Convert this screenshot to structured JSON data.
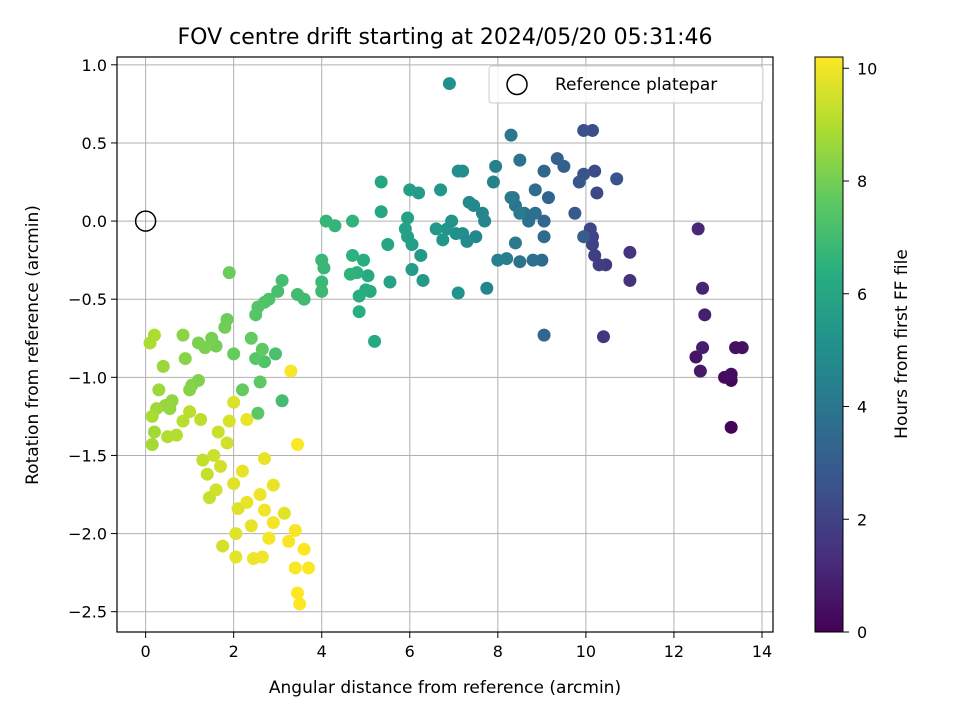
{
  "chart_data": {
    "type": "scatter",
    "title": "FOV centre drift starting at 2024/05/20 05:31:46",
    "xlabel": "Angular distance from reference (arcmin)",
    "ylabel": "Rotation from reference (arcmin)",
    "xlim": [
      -0.65,
      14.25
    ],
    "ylim": [
      -2.63,
      1.05
    ],
    "x_ticks": [
      0,
      2,
      4,
      6,
      8,
      10,
      12,
      14
    ],
    "y_ticks": [
      -2.5,
      -2.0,
      -1.5,
      -1.0,
      -0.5,
      0.0,
      0.5,
      1.0
    ],
    "x_tick_labels": [
      "0",
      "2",
      "4",
      "6",
      "8",
      "10",
      "12",
      "14"
    ],
    "y_tick_labels": [
      "−2.5",
      "−2.0",
      "−1.5",
      "−1.0",
      "−0.5",
      "0.0",
      "0.5",
      "1.0"
    ],
    "grid": true,
    "legend": {
      "placement": "top-right",
      "label": "Reference platepar"
    },
    "reference_point": {
      "x": 0,
      "y": 0
    },
    "colorbar": {
      "label": "Hours from first FF file",
      "colormap": "viridis",
      "range": [
        0,
        10.2
      ],
      "ticks": [
        0,
        2,
        4,
        6,
        8,
        10
      ],
      "tick_labels": [
        "0",
        "2",
        "4",
        "6",
        "8",
        "10"
      ]
    },
    "points": [
      [
        13.3,
        -1.32,
        0.1
      ],
      [
        13.3,
        -1.02,
        0.2
      ],
      [
        13.15,
        -1.0,
        0.3
      ],
      [
        13.3,
        -0.98,
        0.35
      ],
      [
        13.4,
        -0.81,
        0.4
      ],
      [
        13.55,
        -0.81,
        0.45
      ],
      [
        12.5,
        -0.87,
        0.6
      ],
      [
        12.6,
        -0.96,
        0.7
      ],
      [
        12.65,
        -0.81,
        0.8
      ],
      [
        12.7,
        -0.6,
        0.9
      ],
      [
        12.65,
        -0.43,
        1.0
      ],
      [
        12.55,
        -0.05,
        1.1
      ],
      [
        11.0,
        -0.38,
        1.4
      ],
      [
        11.0,
        -0.2,
        1.5
      ],
      [
        10.4,
        -0.74,
        1.6
      ],
      [
        10.45,
        -0.28,
        1.7
      ],
      [
        10.3,
        -0.28,
        1.8
      ],
      [
        10.2,
        -0.22,
        1.9
      ],
      [
        10.15,
        -0.15,
        2.0
      ],
      [
        10.15,
        -0.1,
        2.05
      ],
      [
        10.1,
        -0.05,
        2.1
      ],
      [
        10.25,
        0.18,
        2.2
      ],
      [
        10.2,
        0.32,
        2.3
      ],
      [
        10.15,
        0.58,
        2.4
      ],
      [
        9.95,
        0.58,
        2.5
      ],
      [
        10.7,
        0.27,
        2.6
      ],
      [
        9.95,
        0.3,
        2.7
      ],
      [
        9.85,
        0.25,
        2.8
      ],
      [
        9.75,
        0.05,
        2.9
      ],
      [
        9.95,
        -0.1,
        3.0
      ],
      [
        9.5,
        0.35,
        3.1
      ],
      [
        9.35,
        0.4,
        3.2
      ],
      [
        9.15,
        0.15,
        3.3
      ],
      [
        9.05,
        0.32,
        3.35
      ],
      [
        9.05,
        -0.73,
        3.4
      ],
      [
        9.05,
        0.0,
        3.45
      ],
      [
        9.0,
        -0.25,
        3.5
      ],
      [
        9.05,
        -0.1,
        3.55
      ],
      [
        8.85,
        0.2,
        3.6
      ],
      [
        8.85,
        0.05,
        3.65
      ],
      [
        8.8,
        -0.25,
        3.7
      ],
      [
        8.7,
        0.0,
        3.75
      ],
      [
        8.6,
        0.05,
        3.8
      ],
      [
        8.5,
        0.39,
        3.85
      ],
      [
        8.5,
        -0.26,
        3.9
      ],
      [
        8.4,
        0.1,
        3.95
      ],
      [
        8.35,
        0.15,
        4.0
      ],
      [
        8.3,
        0.55,
        4.05
      ],
      [
        8.3,
        0.15,
        4.1
      ],
      [
        8.4,
        -0.14,
        4.15
      ],
      [
        8.5,
        0.05,
        4.2
      ],
      [
        8.2,
        -0.24,
        4.3
      ],
      [
        8.0,
        -0.25,
        4.4
      ],
      [
        7.95,
        0.35,
        4.45
      ],
      [
        7.9,
        0.25,
        4.5
      ],
      [
        7.7,
        0.0,
        4.55
      ],
      [
        7.75,
        -0.43,
        4.6
      ],
      [
        7.65,
        0.05,
        4.65
      ],
      [
        7.5,
        -0.1,
        4.7
      ],
      [
        7.45,
        0.1,
        4.75
      ],
      [
        7.35,
        0.12,
        4.8
      ],
      [
        7.3,
        -0.13,
        4.85
      ],
      [
        7.2,
        -0.08,
        4.9
      ],
      [
        7.2,
        0.32,
        4.95
      ],
      [
        7.1,
        0.32,
        5.0
      ],
      [
        7.05,
        -0.08,
        5.05
      ],
      [
        6.9,
        0.88,
        5.1
      ],
      [
        7.1,
        -0.46,
        5.15
      ],
      [
        6.95,
        0.0,
        5.2
      ],
      [
        6.85,
        -0.05,
        5.25
      ],
      [
        6.75,
        -0.12,
        5.3
      ],
      [
        6.7,
        0.2,
        5.35
      ],
      [
        6.6,
        -0.05,
        5.4
      ],
      [
        6.3,
        -0.38,
        5.45
      ],
      [
        6.25,
        -0.22,
        5.5
      ],
      [
        6.2,
        0.18,
        5.55
      ],
      [
        6.05,
        -0.31,
        5.6
      ],
      [
        6.05,
        -0.15,
        5.65
      ],
      [
        6.0,
        0.2,
        5.7
      ],
      [
        5.95,
        -0.1,
        5.75
      ],
      [
        5.9,
        -0.05,
        5.8
      ],
      [
        5.95,
        0.02,
        5.85
      ],
      [
        5.55,
        -0.39,
        5.9
      ],
      [
        5.5,
        -0.15,
        5.95
      ],
      [
        5.35,
        0.25,
        6.0
      ],
      [
        5.35,
        0.06,
        6.05
      ],
      [
        5.2,
        -0.77,
        6.1
      ],
      [
        5.1,
        -0.45,
        6.15
      ],
      [
        5.05,
        -0.35,
        6.2
      ],
      [
        5.0,
        -0.44,
        6.25
      ],
      [
        4.95,
        -0.25,
        6.3
      ],
      [
        4.85,
        -0.48,
        6.35
      ],
      [
        4.85,
        -0.58,
        6.4
      ],
      [
        4.8,
        -0.33,
        6.45
      ],
      [
        4.7,
        -0.22,
        6.5
      ],
      [
        4.65,
        -0.34,
        6.55
      ],
      [
        4.7,
        0.0,
        6.6
      ],
      [
        4.3,
        -0.03,
        6.65
      ],
      [
        4.1,
        0.0,
        6.7
      ],
      [
        4.05,
        -0.3,
        6.75
      ],
      [
        4.0,
        -0.25,
        6.8
      ],
      [
        4.0,
        -0.39,
        6.85
      ],
      [
        4.0,
        -0.45,
        6.9
      ],
      [
        3.6,
        -0.5,
        6.95
      ],
      [
        3.45,
        -0.47,
        7.0
      ],
      [
        3.1,
        -1.15,
        7.05
      ],
      [
        3.1,
        -0.38,
        7.1
      ],
      [
        3.0,
        -0.45,
        7.15
      ],
      [
        2.95,
        -0.85,
        7.2
      ],
      [
        2.8,
        -0.5,
        7.25
      ],
      [
        2.7,
        -0.9,
        7.3
      ],
      [
        2.7,
        -0.52,
        7.35
      ],
      [
        2.55,
        -0.55,
        7.4
      ],
      [
        2.5,
        -0.6,
        7.45
      ],
      [
        2.5,
        -0.88,
        7.5
      ],
      [
        2.55,
        -1.23,
        7.55
      ],
      [
        2.6,
        -1.03,
        7.6
      ],
      [
        2.65,
        -0.82,
        7.65
      ],
      [
        2.4,
        -0.75,
        7.7
      ],
      [
        2.2,
        -1.08,
        7.75
      ],
      [
        2.0,
        -0.85,
        7.8
      ],
      [
        1.9,
        -0.33,
        7.85
      ],
      [
        1.85,
        -0.63,
        7.9
      ],
      [
        1.8,
        -0.68,
        7.95
      ],
      [
        1.6,
        -0.8,
        8.0
      ],
      [
        1.5,
        -0.75,
        8.05
      ],
      [
        1.35,
        -0.81,
        8.1
      ],
      [
        1.2,
        -0.78,
        8.15
      ],
      [
        1.2,
        -1.02,
        8.2
      ],
      [
        1.05,
        -1.05,
        8.25
      ],
      [
        1.0,
        -1.08,
        8.3
      ],
      [
        0.9,
        -0.88,
        8.35
      ],
      [
        0.85,
        -0.73,
        8.4
      ],
      [
        0.6,
        -1.15,
        8.45
      ],
      [
        0.55,
        -1.2,
        8.5
      ],
      [
        0.45,
        -1.18,
        8.55
      ],
      [
        0.4,
        -0.93,
        8.6
      ],
      [
        0.3,
        -1.08,
        8.65
      ],
      [
        0.25,
        -1.2,
        8.7
      ],
      [
        0.2,
        -1.35,
        8.75
      ],
      [
        0.15,
        -1.43,
        8.8
      ],
      [
        0.15,
        -1.25,
        8.85
      ],
      [
        0.2,
        -0.73,
        8.9
      ],
      [
        0.1,
        -0.78,
        8.95
      ],
      [
        0.5,
        -1.38,
        9.0
      ],
      [
        0.7,
        -1.37,
        9.05
      ],
      [
        0.85,
        -1.28,
        9.1
      ],
      [
        1.0,
        -1.22,
        9.15
      ],
      [
        1.25,
        -1.27,
        9.2
      ],
      [
        1.3,
        -1.53,
        9.25
      ],
      [
        1.4,
        -1.62,
        9.3
      ],
      [
        1.45,
        -1.77,
        9.35
      ],
      [
        1.55,
        -1.5,
        9.4
      ],
      [
        1.6,
        -1.72,
        9.45
      ],
      [
        1.7,
        -1.57,
        9.5
      ],
      [
        1.75,
        -2.08,
        9.55
      ],
      [
        1.9,
        -1.28,
        9.6
      ],
      [
        2.0,
        -1.16,
        9.65
      ],
      [
        2.0,
        -1.68,
        9.7
      ],
      [
        2.05,
        -2.0,
        9.75
      ],
      [
        2.05,
        -2.15,
        9.8
      ],
      [
        2.2,
        -1.6,
        9.85
      ],
      [
        2.3,
        -1.8,
        9.9
      ],
      [
        2.45,
        -2.16,
        9.95
      ],
      [
        2.65,
        -2.15,
        10.0
      ],
      [
        2.7,
        -1.85,
        10.0
      ],
      [
        2.8,
        -2.03,
        10.05
      ],
      [
        2.9,
        -1.93,
        10.05
      ],
      [
        3.25,
        -2.05,
        10.1
      ],
      [
        3.3,
        -0.96,
        10.1
      ],
      [
        3.45,
        -1.43,
        10.15
      ],
      [
        3.4,
        -2.22,
        10.15
      ],
      [
        3.45,
        -2.38,
        10.2
      ],
      [
        3.5,
        -2.45,
        10.2
      ],
      [
        3.6,
        -2.1,
        10.2
      ],
      [
        3.7,
        -2.22,
        10.2
      ],
      [
        2.3,
        -1.27,
        9.9
      ],
      [
        2.7,
        -1.52,
        9.85
      ],
      [
        2.1,
        -1.84,
        9.7
      ],
      [
        2.4,
        -1.95,
        9.8
      ],
      [
        2.9,
        -1.69,
        9.9
      ],
      [
        1.85,
        -1.42,
        9.5
      ],
      [
        2.6,
        -1.75,
        9.95
      ],
      [
        3.4,
        -1.98,
        10.1
      ],
      [
        3.15,
        -1.87,
        9.75
      ],
      [
        1.65,
        -1.35,
        9.4
      ]
    ]
  }
}
